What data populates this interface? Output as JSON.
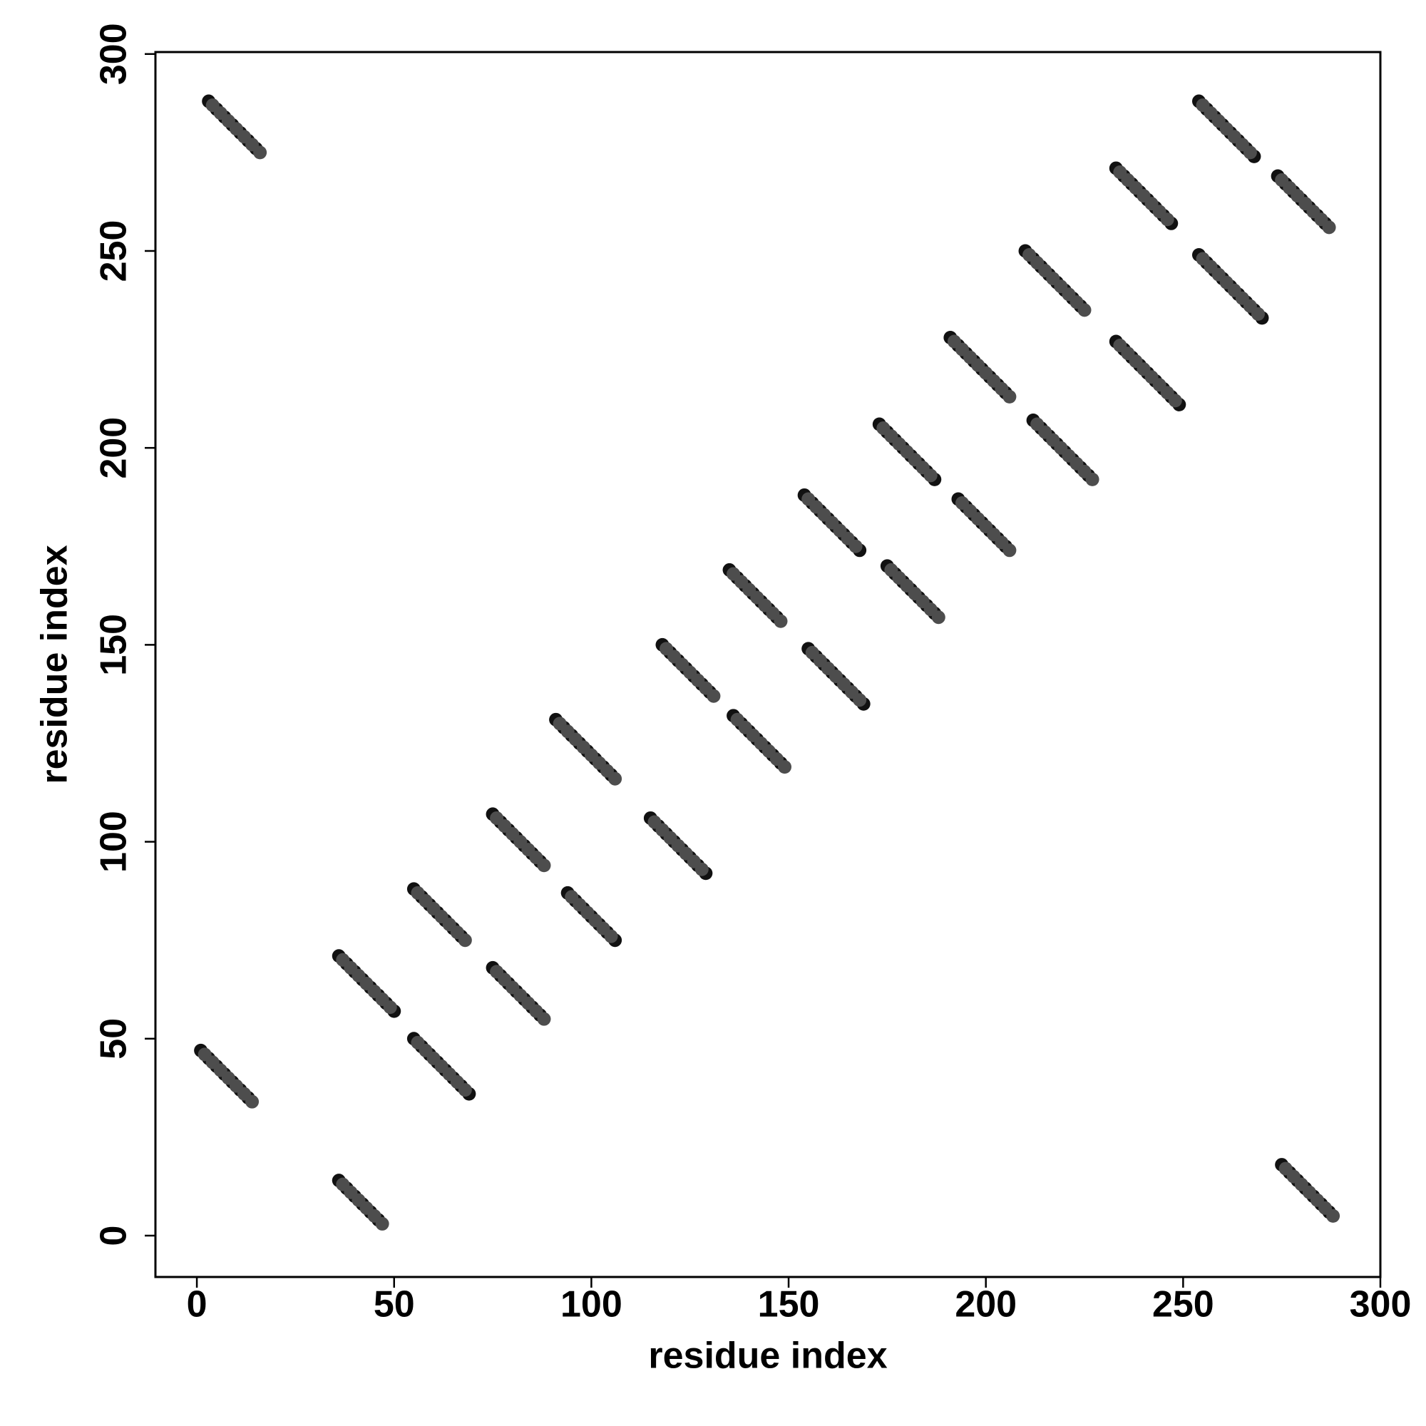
{
  "chart_data": {
    "type": "scatter",
    "xlabel": "residue index",
    "ylabel": "residue index",
    "xlim": [
      -10.5,
      300
    ],
    "ylim": [
      -10.5,
      300.5
    ],
    "xticks": [
      0,
      50,
      100,
      150,
      200,
      250,
      300
    ],
    "yticks": [
      0,
      50,
      100,
      150,
      200,
      250,
      300
    ],
    "series": [
      {
        "color": "#111111",
        "x": [
          3,
          5,
          7,
          9,
          11,
          13,
          15,
          1,
          3,
          5,
          7,
          9,
          11,
          13,
          36,
          38,
          40,
          42,
          44,
          46,
          36,
          38,
          40,
          42,
          44,
          46,
          48,
          50,
          55,
          57,
          59,
          61,
          63,
          65,
          67,
          69,
          55,
          57,
          59,
          61,
          63,
          65,
          67,
          75,
          77,
          79,
          81,
          83,
          85,
          87,
          75,
          77,
          79,
          81,
          83,
          85,
          87,
          94,
          96,
          98,
          100,
          102,
          104,
          106,
          91,
          93,
          95,
          97,
          99,
          101,
          103,
          105,
          115,
          117,
          119,
          121,
          123,
          125,
          127,
          129,
          118,
          120,
          122,
          124,
          126,
          128,
          130,
          136,
          138,
          140,
          142,
          144,
          146,
          148,
          135,
          137,
          139,
          141,
          143,
          145,
          147,
          155,
          157,
          159,
          161,
          163,
          165,
          167,
          169,
          154,
          156,
          158,
          160,
          162,
          164,
          166,
          168,
          175,
          177,
          179,
          181,
          183,
          185,
          187,
          173,
          175,
          177,
          179,
          181,
          183,
          185,
          187,
          193,
          195,
          197,
          199,
          201,
          203,
          205,
          191,
          193,
          195,
          197,
          199,
          201,
          203,
          205,
          212,
          214,
          216,
          218,
          220,
          222,
          224,
          226,
          210,
          212,
          214,
          216,
          218,
          220,
          222,
          224,
          233,
          235,
          237,
          239,
          241,
          243,
          245,
          247,
          249,
          233,
          235,
          237,
          239,
          241,
          243,
          245,
          247,
          254,
          256,
          258,
          260,
          262,
          264,
          266,
          268,
          270,
          254,
          256,
          258,
          260,
          262,
          264,
          266,
          268,
          274,
          276,
          278,
          280,
          282,
          284,
          286,
          275,
          277,
          279,
          281,
          283,
          285,
          287
        ],
        "y": [
          288,
          286,
          284,
          282,
          280,
          278,
          276,
          47,
          45,
          43,
          41,
          39,
          37,
          35,
          14,
          12,
          10,
          8,
          6,
          4,
          71,
          69,
          67,
          65,
          63,
          61,
          59,
          57,
          50,
          48,
          46,
          44,
          42,
          40,
          38,
          36,
          88,
          86,
          84,
          82,
          80,
          78,
          76,
          68,
          66,
          64,
          62,
          60,
          58,
          56,
          107,
          105,
          103,
          101,
          99,
          97,
          95,
          87,
          85,
          83,
          81,
          79,
          77,
          75,
          131,
          129,
          127,
          125,
          123,
          121,
          119,
          117,
          106,
          104,
          102,
          100,
          98,
          96,
          94,
          92,
          150,
          148,
          146,
          144,
          142,
          140,
          138,
          132,
          130,
          128,
          126,
          124,
          122,
          120,
          169,
          167,
          165,
          163,
          161,
          159,
          157,
          149,
          147,
          145,
          143,
          141,
          139,
          137,
          135,
          188,
          186,
          184,
          182,
          180,
          178,
          176,
          174,
          170,
          168,
          166,
          164,
          162,
          160,
          158,
          206,
          204,
          202,
          200,
          198,
          196,
          194,
          192,
          187,
          185,
          183,
          181,
          179,
          177,
          175,
          228,
          226,
          224,
          222,
          220,
          218,
          216,
          214,
          207,
          205,
          203,
          201,
          199,
          197,
          195,
          193,
          250,
          248,
          246,
          244,
          242,
          240,
          238,
          236,
          227,
          225,
          223,
          221,
          219,
          217,
          215,
          213,
          211,
          271,
          269,
          267,
          265,
          263,
          261,
          259,
          257,
          249,
          247,
          245,
          243,
          241,
          239,
          237,
          235,
          233,
          288,
          286,
          284,
          282,
          280,
          278,
          276,
          274,
          269,
          267,
          265,
          263,
          261,
          259,
          257,
          18,
          16,
          14,
          12,
          10,
          8,
          6
        ]
      },
      {
        "color": "#4d4d4d",
        "x": [
          4,
          6,
          8,
          10,
          12,
          14,
          16,
          2,
          4,
          6,
          8,
          10,
          12,
          14,
          37,
          39,
          41,
          43,
          45,
          47,
          37,
          39,
          41,
          43,
          45,
          47,
          49,
          56,
          58,
          60,
          62,
          64,
          66,
          68,
          56,
          58,
          60,
          62,
          64,
          66,
          68,
          76,
          78,
          80,
          82,
          84,
          86,
          88,
          76,
          78,
          80,
          82,
          84,
          86,
          88,
          95,
          97,
          99,
          101,
          103,
          105,
          92,
          94,
          96,
          98,
          100,
          102,
          104,
          106,
          116,
          118,
          120,
          122,
          124,
          126,
          128,
          119,
          121,
          123,
          125,
          127,
          129,
          131,
          137,
          139,
          141,
          143,
          145,
          147,
          149,
          136,
          138,
          140,
          142,
          144,
          146,
          148,
          156,
          158,
          160,
          162,
          164,
          166,
          168,
          155,
          157,
          159,
          161,
          163,
          165,
          167,
          176,
          178,
          180,
          182,
          184,
          186,
          188,
          174,
          176,
          178,
          180,
          182,
          184,
          186,
          194,
          196,
          198,
          200,
          202,
          204,
          206,
          192,
          194,
          196,
          198,
          200,
          202,
          204,
          206,
          213,
          215,
          217,
          219,
          221,
          223,
          225,
          227,
          211,
          213,
          215,
          217,
          219,
          221,
          223,
          225,
          234,
          236,
          238,
          240,
          242,
          244,
          246,
          248,
          234,
          236,
          238,
          240,
          242,
          244,
          246,
          255,
          257,
          259,
          261,
          263,
          265,
          267,
          269,
          255,
          257,
          259,
          261,
          263,
          265,
          267,
          275,
          277,
          279,
          281,
          283,
          285,
          287,
          276,
          278,
          280,
          282,
          284,
          286,
          288
        ],
        "y": [
          287,
          285,
          283,
          281,
          279,
          277,
          275,
          46,
          44,
          42,
          40,
          38,
          36,
          34,
          13,
          11,
          9,
          7,
          5,
          3,
          70,
          68,
          66,
          64,
          62,
          60,
          58,
          49,
          47,
          45,
          43,
          41,
          39,
          37,
          87,
          85,
          83,
          81,
          79,
          77,
          75,
          67,
          65,
          63,
          61,
          59,
          57,
          55,
          106,
          104,
          102,
          100,
          98,
          96,
          94,
          86,
          84,
          82,
          80,
          78,
          76,
          130,
          128,
          126,
          124,
          122,
          120,
          118,
          116,
          105,
          103,
          101,
          99,
          97,
          95,
          93,
          149,
          147,
          145,
          143,
          141,
          139,
          137,
          131,
          129,
          127,
          125,
          123,
          121,
          119,
          168,
          166,
          164,
          162,
          160,
          158,
          156,
          148,
          146,
          144,
          142,
          140,
          138,
          136,
          187,
          185,
          183,
          181,
          179,
          177,
          175,
          169,
          167,
          165,
          163,
          161,
          159,
          157,
          205,
          203,
          201,
          199,
          197,
          195,
          193,
          186,
          184,
          182,
          180,
          178,
          176,
          174,
          227,
          225,
          223,
          221,
          219,
          217,
          215,
          213,
          206,
          204,
          202,
          200,
          198,
          196,
          194,
          192,
          249,
          247,
          245,
          243,
          241,
          239,
          237,
          235,
          226,
          224,
          222,
          220,
          218,
          216,
          214,
          212,
          270,
          268,
          266,
          264,
          262,
          260,
          258,
          248,
          246,
          244,
          242,
          240,
          238,
          236,
          234,
          287,
          285,
          283,
          281,
          279,
          277,
          275,
          268,
          266,
          264,
          262,
          260,
          258,
          256,
          17,
          15,
          13,
          11,
          9,
          7,
          5
        ]
      }
    ]
  }
}
